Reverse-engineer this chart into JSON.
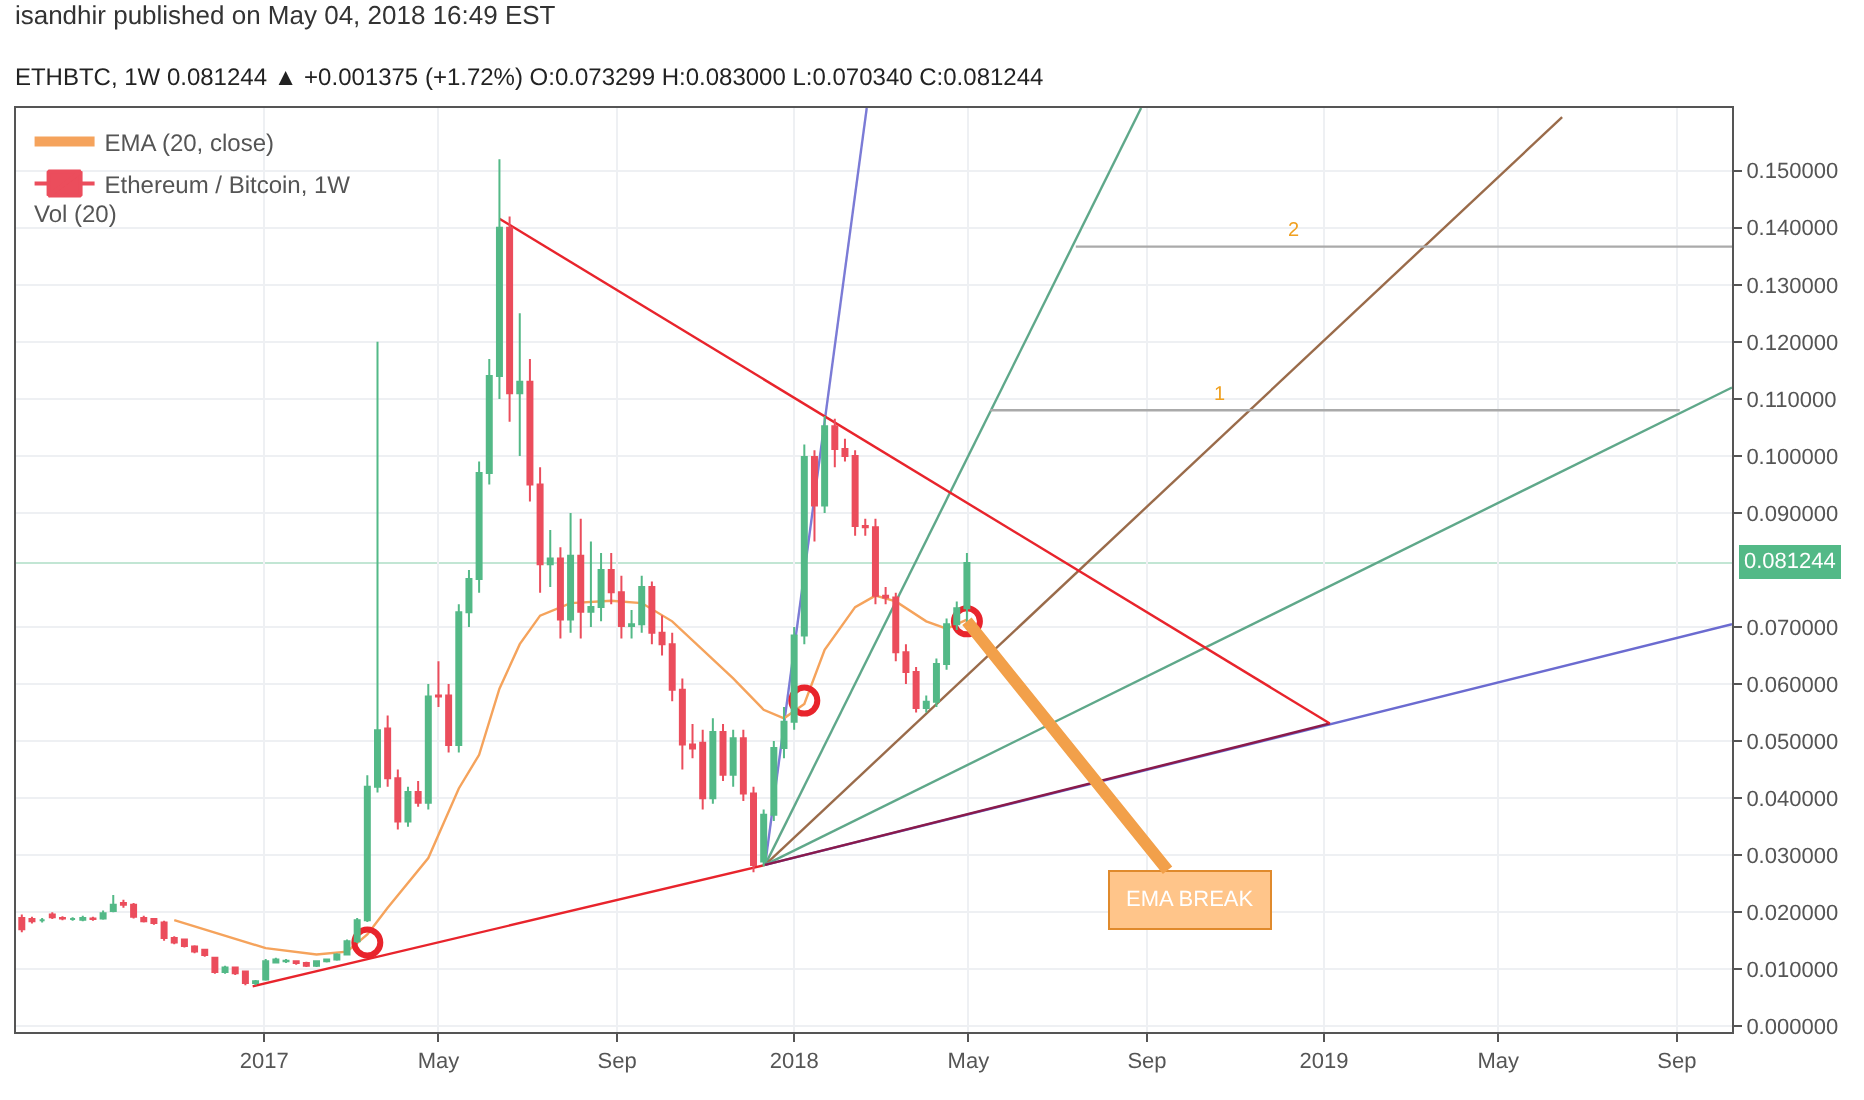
{
  "chart_data": {
    "type": "candlestick",
    "title": "isandhir published on May 04, 2018 16:49 EST",
    "subtitle": "ETHBTC, 1W 0.081244 ▲ +0.001375 (+1.72%) O:0.073299 H:0.083000 L:0.070340 C:0.081244",
    "annotations": [
      "Vol (20)",
      {
        "text": "EMA BREAK",
        "x": "2018-04-30",
        "y": 0.071
      }
    ],
    "xlim": [
      "2016-07-14",
      "2019-10-09"
    ],
    "xticks": [
      {
        "value": "2017-01-01",
        "label": "2017"
      },
      {
        "value": "2017-05-01",
        "label": "May"
      },
      {
        "value": "2017-09-01",
        "label": "Sep"
      },
      {
        "value": "2018-01-01",
        "label": "2018"
      },
      {
        "value": "2018-05-01",
        "label": "May"
      },
      {
        "value": "2018-09-01",
        "label": "Sep"
      },
      {
        "value": "2019-01-01",
        "label": "2019"
      },
      {
        "value": "2019-05-01",
        "label": "May"
      },
      {
        "value": "2019-09-01",
        "label": "Sep"
      }
    ],
    "ylim": [
      -0.001,
      0.161
    ],
    "yticks": [
      {
        "value": 0,
        "label": "0.000000"
      },
      {
        "value": 0.01,
        "label": "0.010000"
      },
      {
        "value": 0.02,
        "label": "0.020000"
      },
      {
        "value": 0.03,
        "label": "0.030000"
      },
      {
        "value": 0.04,
        "label": "0.040000"
      },
      {
        "value": 0.05,
        "label": "0.050000"
      },
      {
        "value": 0.06,
        "label": "0.060000"
      },
      {
        "value": 0.07,
        "label": "0.070000"
      },
      {
        "value": 0.09,
        "label": "0.090000"
      },
      {
        "value": 0.1,
        "label": "0.100000"
      },
      {
        "value": 0.11,
        "label": "0.110000"
      },
      {
        "value": 0.12,
        "label": "0.120000"
      },
      {
        "value": 0.13,
        "label": "0.130000"
      },
      {
        "value": 0.14,
        "label": "0.140000"
      },
      {
        "value": 0.15,
        "label": "0.150000"
      }
    ],
    "grid": true,
    "legend": "top left",
    "ref_lines": [
      {
        "axis": "y",
        "value": 0.081244,
        "label": "0.081244",
        "color": "#53b987"
      }
    ],
    "series": [
      {
        "type": "line",
        "color": "#7b7bd6",
        "x": [
          "2017-12-12",
          "2018-02-20"
        ],
        "values": [
          0.0283,
          0.161
        ]
      },
      {
        "type": "line",
        "color": "#5fa88a",
        "x": [
          "2017-12-12",
          "2018-08-28"
        ],
        "values": [
          0.0283,
          0.161
        ]
      },
      {
        "type": "line",
        "color": "#9a6b4a",
        "x": [
          "2017-12-12",
          "2019-06-14"
        ],
        "values": [
          0.0283,
          0.1594
        ]
      },
      {
        "type": "line",
        "color": "#5fa88a",
        "x": [
          "2017-12-12",
          "2019-10-09"
        ],
        "values": [
          0.0283,
          0.112
        ]
      },
      {
        "type": "line",
        "color": "#6b6bd0",
        "x": [
          "2017-12-12",
          "2019-10-09"
        ],
        "values": [
          0.0283,
          0.0705
        ]
      },
      {
        "type": "line",
        "name": "1",
        "color": "#aaaaaa",
        "x": [
          "2018-05-16",
          "2019-09-03"
        ],
        "values": [
          0.108,
          0.108
        ]
      },
      {
        "type": "line",
        "name": "2",
        "color": "#aaaaaa",
        "x": [
          "2018-07-14",
          "2019-10-09"
        ],
        "values": [
          0.1367,
          0.1367
        ]
      },
      {
        "type": "line",
        "color": "#e8242c",
        "x": [
          "2016-12-24",
          "2017-12-12"
        ],
        "values": [
          0.007,
          0.0283
        ]
      },
      {
        "type": "line",
        "color": "#8b1a4a",
        "x": [
          "2017-12-12",
          "2019-01-05"
        ],
        "values": [
          0.0283,
          0.0531
        ]
      },
      {
        "type": "line",
        "color": "#e8242c",
        "x": [
          "2017-06-12",
          "2019-01-05"
        ],
        "values": [
          0.1416,
          0.0531
        ]
      },
      {
        "type": "line",
        "name": "EMA (20, close)",
        "color": "#f5a35c",
        "x": [
          "2016-10-31",
          "2017-01-02",
          "2017-02-06",
          "2017-02-27",
          "2017-03-13",
          "2017-03-27",
          "2017-04-24",
          "2017-05-15",
          "2017-05-29",
          "2017-06-12",
          "2017-06-26",
          "2017-07-10",
          "2017-07-31",
          "2017-08-28",
          "2017-09-18",
          "2017-10-09",
          "2017-10-30",
          "2017-11-20",
          "2017-12-11",
          "2017-12-25",
          "2018-01-08",
          "2018-01-22",
          "2018-02-12",
          "2018-02-26",
          "2018-03-12",
          "2018-04-02",
          "2018-04-16",
          "2018-04-30"
        ],
        "values": [
          0.0186,
          0.0137,
          0.0126,
          0.0131,
          0.0161,
          0.0208,
          0.0295,
          0.0417,
          0.0476,
          0.0592,
          0.067,
          0.072,
          0.0742,
          0.0746,
          0.0742,
          0.071,
          0.066,
          0.061,
          0.0555,
          0.054,
          0.0565,
          0.066,
          0.0735,
          0.0755,
          0.0745,
          0.071,
          0.0697,
          0.0713
        ]
      },
      {
        "type": "scatter",
        "marker": "circle",
        "color": "#e8242c",
        "x": [
          "2017-03-13",
          "2018-01-08",
          "2018-04-30"
        ],
        "values": [
          0.0147,
          0.0571,
          0.071
        ]
      },
      {
        "type": "candlestick",
        "name": "Ethereum / Bitcoin, 1W",
        "colors": [
          "#eb4d5c",
          "#eb4d5c",
          "#53b987",
          "#eb4d5c",
          "#eb4d5c",
          "#53b987",
          "#53b987",
          "#eb4d5c",
          "#53b987",
          "#53b987",
          "#eb4d5c",
          "#eb4d5c",
          "#eb4d5c",
          "#eb4d5c",
          "#eb4d5c",
          "#eb4d5c",
          "#eb4d5c",
          "#eb4d5c",
          "#eb4d5c",
          "#eb4d5c",
          "#53b987",
          "#eb4d5c",
          "#eb4d5c",
          "#53b987",
          "#53b987",
          "#53b987",
          "#53b987",
          "#eb4d5c",
          "#eb4d5c",
          "#53b987",
          "#53b987",
          "#53b987",
          "#53b987",
          "#53b987",
          "#53b987",
          "#53b987",
          "#eb4d5c",
          "#eb4d5c",
          "#53b987",
          "#eb4d5c",
          "#53b987",
          "#eb4d5c",
          "#eb4d5c",
          "#53b987",
          "#53b987",
          "#53b987",
          "#53b987",
          "#53b987",
          "#eb4d5c",
          "#53b987",
          "#eb4d5c",
          "#eb4d5c",
          "#53b987",
          "#eb4d5c",
          "#53b987",
          "#eb4d5c",
          "#53b987",
          "#53b987",
          "#eb4d5c",
          "#eb4d5c",
          "#53b987",
          "#53b987",
          "#eb4d5c",
          "#eb4d5c",
          "#eb4d5c",
          "#eb4d5c",
          "#eb4d5c",
          "#eb4d5c",
          "#53b987",
          "#eb4d5c",
          "#53b987",
          "#eb4d5c",
          "#eb4d5c",
          "#53b987",
          "#53b987",
          "#53b987",
          "#53b987",
          "#53b987",
          "#eb4d5c",
          "#53b987",
          "#eb4d5c",
          "#eb4d5c",
          "#eb4d5c",
          "#eb4d5c",
          "#eb4d5c",
          "#eb4d5c",
          "#eb4d5c",
          "#eb4d5c",
          "#eb4d5c",
          "#53b987",
          "#53b987",
          "#53b987",
          "#53b987",
          "#53b987"
        ],
        "x": [
          "2016-07-18",
          "2016-07-25",
          "2016-08-01",
          "2016-08-08",
          "2016-08-15",
          "2016-08-22",
          "2016-08-29",
          "2016-09-05",
          "2016-09-12",
          "2016-09-19",
          "2016-09-26",
          "2016-10-03",
          "2016-10-10",
          "2016-10-17",
          "2016-10-24",
          "2016-10-31",
          "2016-11-07",
          "2016-11-14",
          "2016-11-21",
          "2016-11-28",
          "2016-12-05",
          "2016-12-12",
          "2016-12-19",
          "2016-12-26",
          "2017-01-02",
          "2017-01-09",
          "2017-01-16",
          "2017-01-23",
          "2017-01-30",
          "2017-02-06",
          "2017-02-13",
          "2017-02-20",
          "2017-02-27",
          "2017-03-06",
          "2017-03-13",
          "2017-03-20",
          "2017-03-27",
          "2017-04-03",
          "2017-04-10",
          "2017-04-17",
          "2017-04-24",
          "2017-05-01",
          "2017-05-08",
          "2017-05-15",
          "2017-05-22",
          "2017-05-29",
          "2017-06-05",
          "2017-06-12",
          "2017-06-19",
          "2017-06-26",
          "2017-07-03",
          "2017-07-10",
          "2017-07-17",
          "2017-07-24",
          "2017-07-31",
          "2017-08-07",
          "2017-08-14",
          "2017-08-21",
          "2017-08-28",
          "2017-09-04",
          "2017-09-11",
          "2017-09-18",
          "2017-09-25",
          "2017-10-02",
          "2017-10-09",
          "2017-10-16",
          "2017-10-23",
          "2017-10-30",
          "2017-11-06",
          "2017-11-13",
          "2017-11-20",
          "2017-11-27",
          "2017-12-04",
          "2017-12-11",
          "2017-12-18",
          "2017-12-25",
          "2018-01-01",
          "2018-01-08",
          "2018-01-15",
          "2018-01-22",
          "2018-01-29",
          "2018-02-05",
          "2018-02-12",
          "2018-02-19",
          "2018-02-26",
          "2018-03-05",
          "2018-03-12",
          "2018-03-19",
          "2018-03-26",
          "2018-04-02",
          "2018-04-09",
          "2018-04-16",
          "2018-04-23",
          "2018-04-30"
        ],
        "ohlc": [
          [
            0.019,
            0.0196,
            0.0165,
            0.017
          ],
          [
            0.0188,
            0.0192,
            0.018,
            0.0184
          ],
          [
            0.0186,
            0.019,
            0.0182,
            0.0186
          ],
          [
            0.0196,
            0.02,
            0.0188,
            0.0191
          ],
          [
            0.019,
            0.0193,
            0.0186,
            0.0189
          ],
          [
            0.0188,
            0.0191,
            0.0185,
            0.0188
          ],
          [
            0.0187,
            0.0194,
            0.0184,
            0.019
          ],
          [
            0.0189,
            0.0192,
            0.0185,
            0.0188
          ],
          [
            0.0189,
            0.0203,
            0.0187,
            0.0198
          ],
          [
            0.0202,
            0.023,
            0.02,
            0.0213
          ],
          [
            0.0216,
            0.0222,
            0.0208,
            0.0213
          ],
          [
            0.0213,
            0.0216,
            0.0189,
            0.0192
          ],
          [
            0.019,
            0.0194,
            0.0182,
            0.0184
          ],
          [
            0.0188,
            0.019,
            0.0178,
            0.0181
          ],
          [
            0.0182,
            0.0185,
            0.015,
            0.0155
          ],
          [
            0.0155,
            0.0158,
            0.0144,
            0.0147
          ],
          [
            0.0152,
            0.0154,
            0.0138,
            0.0141
          ],
          [
            0.014,
            0.0142,
            0.0128,
            0.0131
          ],
          [
            0.0134,
            0.0136,
            0.0122,
            0.0125
          ],
          [
            0.012,
            0.0122,
            0.0092,
            0.0095
          ],
          [
            0.0095,
            0.0106,
            0.0092,
            0.0103
          ],
          [
            0.0103,
            0.0105,
            0.009,
            0.0093
          ],
          [
            0.0096,
            0.0098,
            0.0072,
            0.0076
          ],
          [
            0.0076,
            0.0081,
            0.0072,
            0.0079
          ],
          [
            0.0082,
            0.0118,
            0.008,
            0.0114
          ],
          [
            0.0112,
            0.012,
            0.011,
            0.0117
          ],
          [
            0.0114,
            0.0118,
            0.0111,
            0.0115
          ],
          [
            0.0114,
            0.0116,
            0.0108,
            0.0111
          ],
          [
            0.0111,
            0.0113,
            0.0104,
            0.0106
          ],
          [
            0.0106,
            0.0116,
            0.0104,
            0.0114
          ],
          [
            0.0114,
            0.0119,
            0.0112,
            0.0117
          ],
          [
            0.0117,
            0.0128,
            0.0115,
            0.0126
          ],
          [
            0.0126,
            0.0152,
            0.0124,
            0.0149
          ],
          [
            0.0149,
            0.019,
            0.0146,
            0.0186
          ],
          [
            0.0186,
            0.044,
            0.0183,
            0.042
          ],
          [
            0.042,
            0.12,
            0.041,
            0.0519
          ],
          [
            0.0522,
            0.0545,
            0.042,
            0.0435
          ],
          [
            0.0435,
            0.045,
            0.0345,
            0.0359
          ],
          [
            0.0359,
            0.042,
            0.035,
            0.0411
          ],
          [
            0.0411,
            0.043,
            0.0385,
            0.0392
          ],
          [
            0.0392,
            0.06,
            0.038,
            0.0578
          ],
          [
            0.058,
            0.064,
            0.056,
            0.0578
          ],
          [
            0.058,
            0.06,
            0.048,
            0.0493
          ],
          [
            0.0493,
            0.074,
            0.048,
            0.0726
          ],
          [
            0.0726,
            0.08,
            0.07,
            0.0784
          ],
          [
            0.0784,
            0.099,
            0.076,
            0.097
          ],
          [
            0.097,
            0.117,
            0.095,
            0.114
          ],
          [
            0.114,
            0.152,
            0.11,
            0.14
          ],
          [
            0.14,
            0.142,
            0.106,
            0.111
          ],
          [
            0.111,
            0.125,
            0.1,
            0.113
          ],
          [
            0.113,
            0.117,
            0.092,
            0.095
          ],
          [
            0.095,
            0.098,
            0.076,
            0.081
          ],
          [
            0.081,
            0.087,
            0.077,
            0.082
          ],
          [
            0.082,
            0.084,
            0.068,
            0.0713
          ],
          [
            0.0713,
            0.09,
            0.069,
            0.0825
          ],
          [
            0.0825,
            0.089,
            0.068,
            0.0727
          ],
          [
            0.0727,
            0.085,
            0.07,
            0.0735
          ],
          [
            0.0735,
            0.083,
            0.071,
            0.08
          ],
          [
            0.08,
            0.083,
            0.074,
            0.0761
          ],
          [
            0.0761,
            0.079,
            0.068,
            0.0702
          ],
          [
            0.0702,
            0.073,
            0.068,
            0.0705
          ],
          [
            0.0705,
            0.079,
            0.069,
            0.077
          ],
          [
            0.077,
            0.078,
            0.067,
            0.069
          ],
          [
            0.069,
            0.072,
            0.065,
            0.067
          ],
          [
            0.067,
            0.069,
            0.057,
            0.059
          ],
          [
            0.059,
            0.061,
            0.045,
            0.0494
          ],
          [
            0.0494,
            0.053,
            0.047,
            0.0487
          ],
          [
            0.0497,
            0.052,
            0.038,
            0.04
          ],
          [
            0.04,
            0.054,
            0.039,
            0.0516
          ],
          [
            0.0516,
            0.053,
            0.043,
            0.0441
          ],
          [
            0.0441,
            0.052,
            0.042,
            0.0505
          ],
          [
            0.0505,
            0.052,
            0.0395,
            0.0408
          ],
          [
            0.0408,
            0.042,
            0.027,
            0.0283
          ],
          [
            0.0289,
            0.038,
            0.028,
            0.0371
          ],
          [
            0.0371,
            0.05,
            0.036,
            0.0488
          ],
          [
            0.0488,
            0.056,
            0.047,
            0.0534
          ],
          [
            0.0534,
            0.07,
            0.052,
            0.0685
          ],
          [
            0.0685,
            0.102,
            0.067,
            0.0998
          ],
          [
            0.0998,
            0.101,
            0.085,
            0.0913
          ],
          [
            0.0913,
            0.107,
            0.09,
            0.1052
          ],
          [
            0.1052,
            0.1065,
            0.098,
            0.1012
          ],
          [
            0.1012,
            0.103,
            0.099,
            0.1
          ],
          [
            0.1,
            0.101,
            0.086,
            0.0877
          ],
          [
            0.0877,
            0.089,
            0.086,
            0.0875
          ],
          [
            0.0875,
            0.089,
            0.074,
            0.0755
          ],
          [
            0.0755,
            0.077,
            0.074,
            0.0752
          ],
          [
            0.0752,
            0.076,
            0.064,
            0.0656
          ],
          [
            0.0656,
            0.067,
            0.06,
            0.0621
          ],
          [
            0.0621,
            0.063,
            0.055,
            0.0558
          ],
          [
            0.0558,
            0.058,
            0.055,
            0.0569
          ],
          [
            0.0569,
            0.0645,
            0.056,
            0.0635
          ],
          [
            0.0635,
            0.0715,
            0.0625,
            0.0705
          ],
          [
            0.0705,
            0.0745,
            0.0695,
            0.0733
          ],
          [
            0.073299,
            0.083,
            0.07034,
            0.081244
          ]
        ]
      }
    ]
  }
}
